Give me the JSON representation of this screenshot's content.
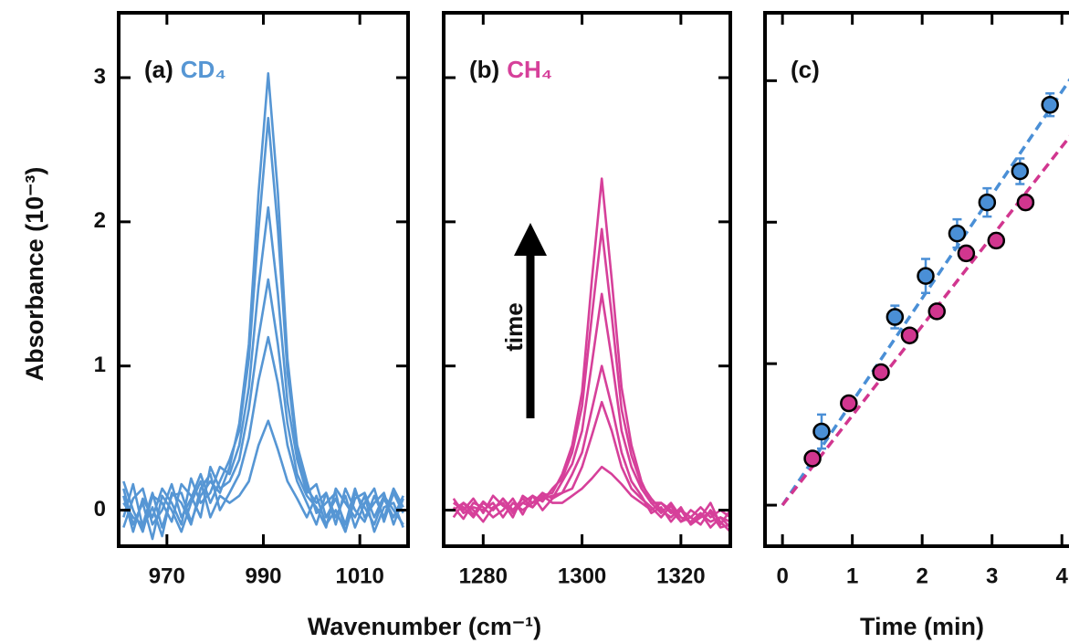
{
  "chart_data": [
    {
      "type": "line",
      "label": "(a)",
      "species": "CD₄",
      "color": "#5696d4",
      "xlabel": "Wavenumber (cm⁻¹)",
      "ylabel": "Absorbance (10⁻³)",
      "xlim": [
        960,
        1020
      ],
      "ylim": [
        -0.25,
        3.45
      ],
      "xticks": [
        970,
        990,
        1010
      ],
      "yticks": [
        0,
        1,
        2,
        3
      ],
      "ytick_labels": true,
      "x": [
        961,
        963,
        965,
        967,
        969,
        971,
        973,
        975,
        977,
        979,
        981,
        983,
        985,
        987,
        989,
        991,
        993,
        995,
        997,
        999,
        1001,
        1003,
        1005,
        1007,
        1009,
        1011,
        1013,
        1015,
        1017,
        1019
      ],
      "series": [
        {
          "values": [
            0.15,
            -0.1,
            0.05,
            -0.2,
            0.1,
            0.0,
            -0.15,
            0.05,
            0.2,
            -0.05,
            0.1,
            0.05,
            0.1,
            0.2,
            0.45,
            0.62,
            0.42,
            0.2,
            0.08,
            -0.05,
            0.1,
            -0.1,
            0.0,
            -0.15,
            0.12,
            0.02,
            -0.1,
            0.08,
            -0.05,
            0.1
          ]
        },
        {
          "values": [
            -0.05,
            0.18,
            -0.12,
            0.02,
            -0.18,
            0.12,
            0.05,
            -0.1,
            0.15,
            0.25,
            0.0,
            0.12,
            0.25,
            0.5,
            0.9,
            1.2,
            0.88,
            0.45,
            0.2,
            0.05,
            -0.1,
            0.12,
            -0.05,
            0.1,
            -0.12,
            0.05,
            0.15,
            -0.08,
            0.12,
            -0.02
          ]
        },
        {
          "values": [
            0.2,
            0.0,
            -0.15,
            0.1,
            0.05,
            -0.08,
            0.18,
            0.1,
            -0.05,
            0.3,
            0.15,
            0.2,
            0.35,
            0.7,
            1.2,
            1.6,
            1.15,
            0.6,
            0.25,
            0.1,
            0.02,
            -0.12,
            0.15,
            0.05,
            -0.05,
            0.1,
            -0.15,
            0.02,
            0.05,
            -0.12
          ]
        },
        {
          "values": [
            0.1,
            -0.15,
            0.08,
            -0.05,
            0.15,
            0.05,
            -0.1,
            0.22,
            0.05,
            0.12,
            0.3,
            0.25,
            0.45,
            0.85,
            1.55,
            2.1,
            1.5,
            0.75,
            0.35,
            0.12,
            0.18,
            -0.05,
            0.08,
            -0.1,
            0.15,
            -0.05,
            0.05,
            0.12,
            -0.1,
            0.08
          ]
        },
        {
          "values": [
            -0.12,
            0.08,
            0.15,
            -0.1,
            0.0,
            0.18,
            -0.05,
            0.08,
            0.25,
            0.05,
            0.2,
            0.35,
            0.55,
            1.05,
            1.95,
            2.72,
            1.95,
            0.95,
            0.4,
            0.15,
            0.05,
            0.12,
            -0.1,
            0.15,
            0.0,
            -0.08,
            0.1,
            -0.05,
            0.15,
            0.02
          ]
        },
        {
          "values": [
            0.05,
            -0.05,
            -0.1,
            0.12,
            -0.12,
            0.1,
            0.12,
            -0.08,
            0.1,
            0.2,
            0.12,
            0.3,
            0.6,
            1.15,
            2.2,
            3.03,
            2.2,
            1.05,
            0.45,
            0.2,
            -0.02,
            0.05,
            0.12,
            -0.15,
            0.08,
            0.12,
            -0.05,
            0.1,
            0.0,
            -0.1
          ]
        }
      ]
    },
    {
      "type": "line",
      "label": "(b)",
      "species": "CH₄",
      "color": "#d6409a",
      "annotation": "time",
      "xlim": [
        1272,
        1330
      ],
      "ylim": [
        -0.25,
        3.45
      ],
      "xticks": [
        1280,
        1300,
        1320
      ],
      "yticks": [
        0,
        1,
        2,
        3
      ],
      "ytick_labels": false,
      "x": [
        1274,
        1276,
        1278,
        1280,
        1282,
        1284,
        1286,
        1288,
        1290,
        1292,
        1294,
        1296,
        1298,
        1300,
        1302,
        1304,
        1306,
        1308,
        1310,
        1312,
        1314,
        1316,
        1318,
        1320,
        1322,
        1324,
        1326,
        1328,
        1330
      ],
      "series": [
        {
          "values": [
            0.05,
            0.0,
            0.08,
            -0.02,
            0.1,
            0.03,
            0.0,
            0.08,
            0.02,
            0.1,
            0.05,
            0.05,
            0.1,
            0.15,
            0.22,
            0.3,
            0.25,
            0.18,
            0.1,
            0.05,
            0.0,
            0.05,
            -0.02,
            0.0,
            -0.05,
            0.02,
            -0.05,
            0.0,
            -0.05
          ]
        },
        {
          "values": [
            0.0,
            0.05,
            -0.03,
            0.06,
            0.0,
            0.08,
            -0.02,
            0.05,
            0.1,
            0.0,
            0.08,
            0.12,
            0.15,
            0.3,
            0.52,
            0.75,
            0.55,
            0.3,
            0.15,
            0.08,
            0.02,
            -0.05,
            0.03,
            -0.08,
            0.0,
            -0.05,
            0.05,
            -0.1,
            0.0
          ]
        },
        {
          "values": [
            0.08,
            -0.02,
            0.02,
            0.0,
            0.05,
            -0.05,
            0.05,
            0.0,
            0.05,
            0.08,
            0.1,
            0.12,
            0.25,
            0.4,
            0.7,
            1.0,
            0.72,
            0.4,
            0.2,
            0.1,
            -0.02,
            0.02,
            -0.08,
            0.0,
            -0.1,
            -0.03,
            -0.08,
            -0.05,
            -0.12
          ]
        },
        {
          "values": [
            -0.05,
            0.05,
            0.0,
            -0.08,
            0.02,
            0.05,
            -0.05,
            0.1,
            0.05,
            0.12,
            0.08,
            0.2,
            0.32,
            0.55,
            1.02,
            1.5,
            1.05,
            0.55,
            0.3,
            0.15,
            0.05,
            -0.02,
            0.05,
            -0.05,
            -0.08,
            -0.02,
            -0.12,
            -0.05,
            -0.08
          ]
        },
        {
          "values": [
            0.02,
            -0.06,
            0.05,
            0.02,
            -0.05,
            0.0,
            0.08,
            -0.03,
            0.1,
            0.06,
            0.15,
            0.22,
            0.4,
            0.72,
            1.35,
            1.95,
            1.35,
            0.7,
            0.38,
            0.18,
            0.08,
            0.0,
            -0.05,
            0.02,
            -0.1,
            -0.05,
            -0.02,
            -0.12,
            -0.1
          ]
        },
        {
          "values": [
            0.05,
            0.02,
            -0.05,
            0.05,
            0.0,
            0.08,
            0.0,
            0.05,
            0.02,
            0.1,
            0.12,
            0.25,
            0.45,
            0.82,
            1.6,
            2.3,
            1.6,
            0.85,
            0.45,
            0.2,
            0.05,
            0.05,
            0.0,
            -0.08,
            -0.05,
            -0.1,
            0.0,
            -0.08,
            -0.15
          ]
        }
      ]
    },
    {
      "type": "scatter",
      "label": "(c)",
      "xlabel": "Time (min)",
      "xlim": [
        -0.25,
        4.35
      ],
      "ylim": [
        -0.29,
        3.48
      ],
      "xticks": [
        0,
        1,
        2,
        3,
        4
      ],
      "yticks": [
        0,
        1,
        2,
        3
      ],
      "ytick_labels": false,
      "series": [
        {
          "color": "#4a8fd6",
          "x": [
            0.56,
            1.61,
            2.05,
            2.5,
            2.93,
            3.4,
            3.83
          ],
          "values": [
            0.52,
            1.33,
            1.62,
            1.92,
            2.14,
            2.36,
            2.83
          ],
          "error": [
            0.12,
            0.08,
            0.12,
            0.1,
            0.1,
            0.09,
            0.08
          ]
        },
        {
          "color": "#d1368f",
          "x": [
            0.43,
            0.95,
            1.41,
            1.82,
            2.21,
            2.63,
            3.06,
            3.48
          ],
          "values": [
            0.33,
            0.72,
            0.94,
            1.2,
            1.37,
            1.78,
            1.87,
            2.14
          ],
          "error": [
            0.03,
            0.04,
            0.04,
            0.04,
            0.04,
            0.05,
            0.05,
            0.05
          ]
        }
      ],
      "fits": [
        {
          "color": "#4a8fd6",
          "x": [
            0,
            4.2
          ],
          "values": [
            0,
            3.07
          ]
        },
        {
          "color": "#d1368f",
          "x": [
            0,
            4.2
          ],
          "values": [
            0,
            2.66
          ]
        }
      ]
    }
  ]
}
